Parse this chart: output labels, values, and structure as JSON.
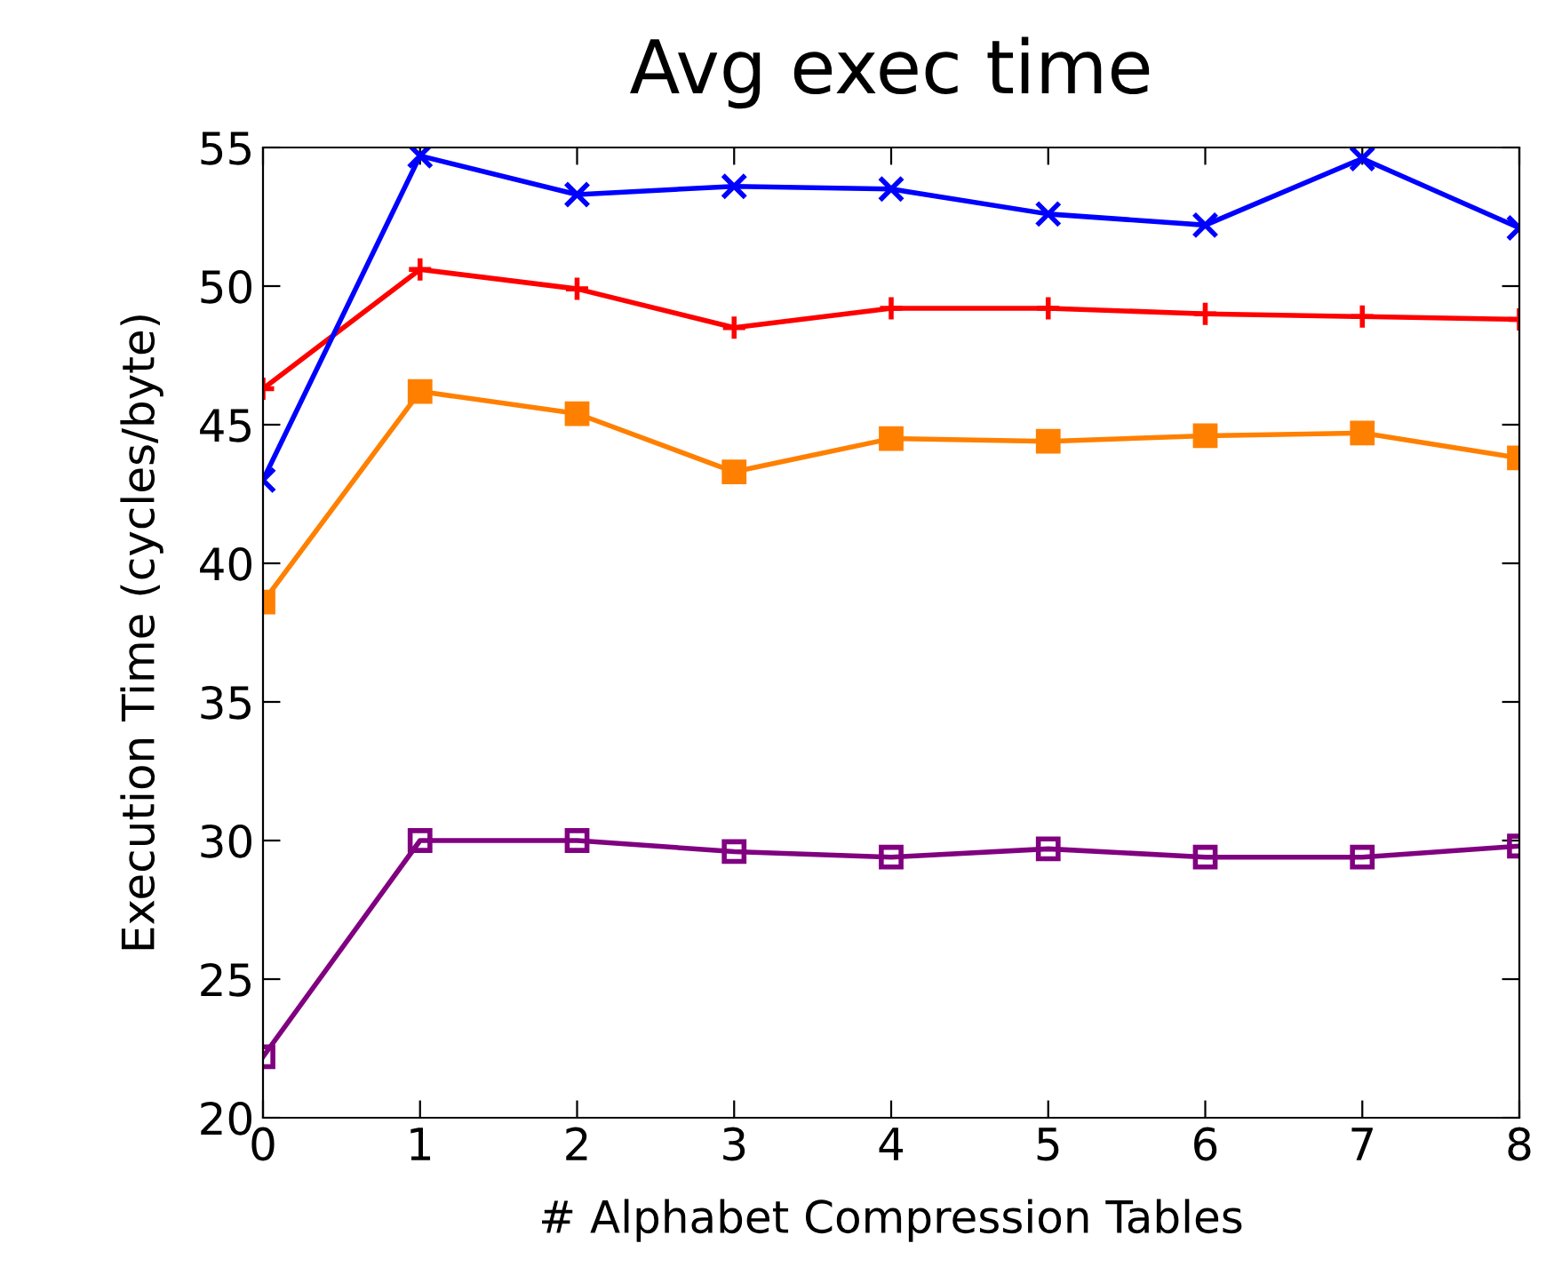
{
  "chart_data": {
    "type": "line",
    "title": "Avg exec time",
    "xlabel": "# Alphabet Compression Tables",
    "ylabel": "Execution Time (cycles/byte)",
    "x": [
      0,
      1,
      2,
      3,
      4,
      5,
      6,
      7,
      8
    ],
    "series": [
      {
        "color": "#ff0000",
        "marker": "plus",
        "values": [
          46.3,
          50.6,
          49.9,
          48.5,
          49.2,
          49.2,
          49.0,
          48.9,
          48.8
        ]
      },
      {
        "color": "#0000ff",
        "marker": "cross",
        "values": [
          43.0,
          54.7,
          53.3,
          53.6,
          53.5,
          52.6,
          52.2,
          54.6,
          52.1
        ]
      },
      {
        "color": "#ff8000",
        "marker": "square",
        "values": [
          38.6,
          46.2,
          45.4,
          43.3,
          44.5,
          44.4,
          44.6,
          44.7,
          43.8
        ]
      },
      {
        "color": "#800080",
        "marker": "square",
        "values": [
          22.2,
          30.0,
          30.0,
          29.6,
          29.4,
          29.7,
          29.4,
          29.4,
          29.8
        ]
      }
    ],
    "xlim": [
      0,
      8
    ],
    "xticks": [
      0,
      1,
      2,
      3,
      4,
      5,
      6,
      7,
      8
    ],
    "ylim": [
      20,
      55
    ],
    "yticks": [
      20,
      25,
      30,
      35,
      40,
      45,
      50,
      55
    ],
    "grid": false,
    "legend": false,
    "line_style": "solid"
  }
}
